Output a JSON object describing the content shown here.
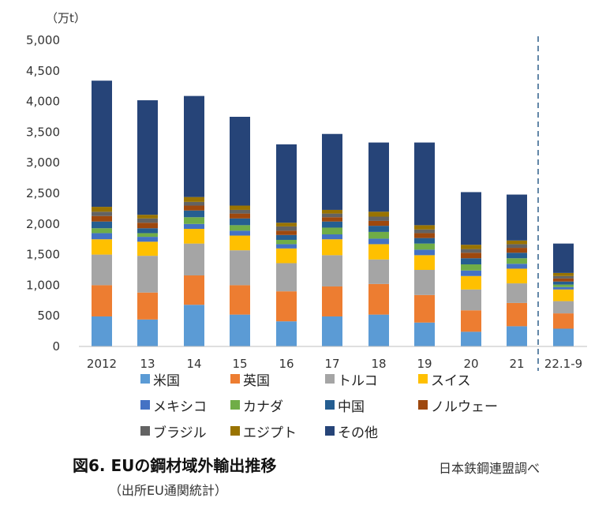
{
  "chart_data": {
    "type": "bar",
    "stacked": true,
    "unit_label": "（万t）",
    "ylim": [
      0,
      5000
    ],
    "yticks": [
      "0",
      "500",
      "1,000",
      "1,500",
      "2,000",
      "2,500",
      "3,000",
      "3,500",
      "4,000",
      "4,500",
      "5,000"
    ],
    "categories": [
      "2012",
      "13",
      "14",
      "15",
      "16",
      "17",
      "18",
      "19",
      "20",
      "21",
      "22.1-9"
    ],
    "grid": false,
    "divider_after_category": "21",
    "legend_position": "bottom",
    "series": [
      {
        "name": "米国",
        "color": "#5b9bd5",
        "values": [
          490,
          440,
          680,
          520,
          410,
          490,
          520,
          390,
          240,
          330,
          290
        ]
      },
      {
        "name": "英国",
        "color": "#ed7d31",
        "values": [
          510,
          440,
          480,
          480,
          490,
          490,
          500,
          450,
          350,
          380,
          250
        ]
      },
      {
        "name": "トルコ",
        "color": "#a5a5a5",
        "values": [
          500,
          600,
          520,
          570,
          460,
          510,
          400,
          410,
          340,
          320,
          200
        ]
      },
      {
        "name": "スイス",
        "color": "#ffc000",
        "values": [
          250,
          230,
          240,
          240,
          240,
          260,
          250,
          240,
          220,
          240,
          190
        ]
      },
      {
        "name": "メキシコ",
        "color": "#4472c4",
        "values": [
          100,
          80,
          80,
          80,
          70,
          80,
          90,
          90,
          90,
          80,
          40
        ]
      },
      {
        "name": "カナダ",
        "color": "#70ad47",
        "values": [
          80,
          60,
          110,
          90,
          70,
          110,
          110,
          100,
          100,
          90,
          40
        ]
      },
      {
        "name": "中国",
        "color": "#255e91",
        "values": [
          110,
          80,
          110,
          110,
          80,
          100,
          100,
          90,
          100,
          90,
          50
        ]
      },
      {
        "name": "ノルウェー",
        "color": "#9e480e",
        "values": [
          90,
          90,
          80,
          80,
          70,
          70,
          80,
          80,
          90,
          80,
          50
        ]
      },
      {
        "name": "ブラジル",
        "color": "#636363",
        "values": [
          70,
          70,
          60,
          60,
          70,
          60,
          70,
          60,
          60,
          60,
          40
        ]
      },
      {
        "name": "エジプト",
        "color": "#997300",
        "values": [
          80,
          60,
          80,
          70,
          60,
          60,
          80,
          70,
          70,
          60,
          50
        ]
      },
      {
        "name": "その他",
        "color": "#264478",
        "values": [
          2060,
          1870,
          1650,
          1450,
          1280,
          1240,
          1130,
          1350,
          860,
          750,
          480
        ]
      }
    ]
  },
  "caption": {
    "title": "図6. EUの鋼材域外輸出推移",
    "subtitle": "（出所EU通関統計）",
    "credit": "日本鉄鋼連盟調べ"
  }
}
